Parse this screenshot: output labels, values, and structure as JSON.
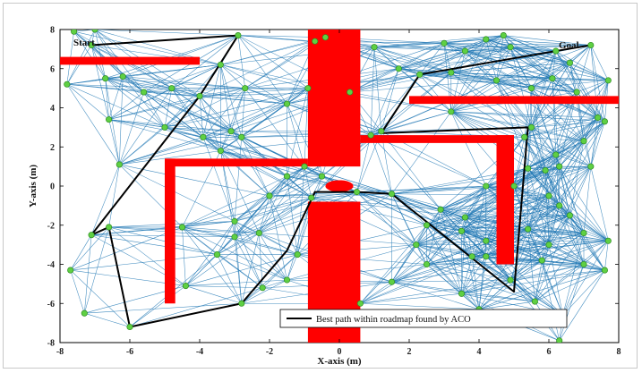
{
  "chart_data": {
    "type": "scatter",
    "title": "",
    "xlabel": "X-axis (m)",
    "ylabel": "Y-axis (m)",
    "xlim": [
      -8,
      8
    ],
    "ylim": [
      -8,
      8
    ],
    "xticks": [
      "-8",
      "-6",
      "-4",
      "-2",
      "0",
      "2",
      "4",
      "6",
      "8"
    ],
    "yticks": [
      "-8",
      "-6",
      "-4",
      "-2",
      "0",
      "2",
      "4",
      "6",
      "8"
    ],
    "annotations": [
      {
        "text": "Start",
        "x": -7.4,
        "y": 7.3
      },
      {
        "text": "Goal",
        "x": 6.4,
        "y": 7.05
      }
    ],
    "legend": {
      "position": "bottom-right",
      "entries": [
        "Best path within roadmap found by ACO"
      ]
    },
    "colors": {
      "edges": "#1f77b4",
      "nodes": "#5fd043",
      "node_stroke": "#2e8b22",
      "path": "#000000",
      "obstacles": "#ff0000"
    },
    "obstacles": [
      {
        "x0": -8,
        "x1": -4,
        "y0": 6.2,
        "y1": 6.6
      },
      {
        "x0": -0.9,
        "x1": 0.6,
        "y0": 1.0,
        "y1": 8.0
      },
      {
        "x0": -0.9,
        "x1": 0.6,
        "y0": -8.0,
        "y1": -0.8
      },
      {
        "x0": -5.0,
        "x1": -0.9,
        "y0": 1.0,
        "y1": 1.4
      },
      {
        "x0": -5.0,
        "x1": -4.7,
        "y0": -6.0,
        "y1": 1.4
      },
      {
        "x0": 0.6,
        "x1": 5.0,
        "y0": 2.2,
        "y1": 2.6
      },
      {
        "x0": 4.5,
        "x1": 5.0,
        "y0": -4.0,
        "y1": 2.6
      },
      {
        "x0": 2.0,
        "x1": 8.0,
        "y0": 4.2,
        "y1": 4.6
      }
    ],
    "central_obstacle": {
      "x": 0,
      "y": 0,
      "rx": 0.4,
      "ry": 0.3
    },
    "nodes": [
      [
        -7.6,
        7.9
      ],
      [
        -7.1,
        7.2
      ],
      [
        -7.0,
        8.0
      ],
      [
        -2.9,
        7.7
      ],
      [
        -0.7,
        7.4
      ],
      [
        -0.4,
        7.6
      ],
      [
        -7.8,
        5.2
      ],
      [
        -6.7,
        5.5
      ],
      [
        -6.2,
        5.6
      ],
      [
        -5.6,
        4.8
      ],
      [
        -4.8,
        5.0
      ],
      [
        -4.0,
        4.6
      ],
      [
        -3.4,
        6.2
      ],
      [
        -2.7,
        5.0
      ],
      [
        -1.5,
        4.2
      ],
      [
        -0.9,
        5.0
      ],
      [
        -6.6,
        3.4
      ],
      [
        -5.0,
        3.0
      ],
      [
        -3.9,
        2.5
      ],
      [
        -3.1,
        2.8
      ],
      [
        -2.8,
        2.5
      ],
      [
        -6.3,
        1.1
      ],
      [
        -3.4,
        1.8
      ],
      [
        1.0,
        7.1
      ],
      [
        1.7,
        6.0
      ],
      [
        3.0,
        7.3
      ],
      [
        3.6,
        6.9
      ],
      [
        4.2,
        7.5
      ],
      [
        4.7,
        7.7
      ],
      [
        4.9,
        7.1
      ],
      [
        6.2,
        6.9
      ],
      [
        6.6,
        6.3
      ],
      [
        7.2,
        7.2
      ],
      [
        2.3,
        5.7
      ],
      [
        3.2,
        5.8
      ],
      [
        4.5,
        5.4
      ],
      [
        5.5,
        5.0
      ],
      [
        6.1,
        5.5
      ],
      [
        6.8,
        4.8
      ],
      [
        7.7,
        5.4
      ],
      [
        0.3,
        4.8
      ],
      [
        0.9,
        2.6
      ],
      [
        1.2,
        2.8
      ],
      [
        3.2,
        3.8
      ],
      [
        5.5,
        3.0
      ],
      [
        5.3,
        2.5
      ],
      [
        6.2,
        1.6
      ],
      [
        7.0,
        2.3
      ],
      [
        7.4,
        3.5
      ],
      [
        7.6,
        3.3
      ],
      [
        6.3,
        1.0
      ],
      [
        7.2,
        1.0
      ],
      [
        5.9,
        0.8
      ],
      [
        6.0,
        -0.5
      ],
      [
        6.3,
        -1.0
      ],
      [
        6.6,
        -1.5
      ],
      [
        5.4,
        -2.2
      ],
      [
        7.0,
        -2.4
      ],
      [
        7.7,
        -2.8
      ],
      [
        6.0,
        -3.0
      ],
      [
        7.0,
        -4.0
      ],
      [
        7.6,
        -4.3
      ],
      [
        5.6,
        -5.9
      ],
      [
        6.4,
        -6.6
      ],
      [
        6.3,
        -7.9
      ],
      [
        5.8,
        -3.8
      ],
      [
        5.0,
        0.0
      ],
      [
        4.2,
        0.0
      ],
      [
        5.4,
        0.9
      ],
      [
        -7.7,
        -4.3
      ],
      [
        -7.3,
        -6.5
      ],
      [
        -7.1,
        -2.5
      ],
      [
        -6.6,
        -2.1
      ],
      [
        -6.0,
        -7.2
      ],
      [
        -4.5,
        -2.1
      ],
      [
        -3.5,
        -3.5
      ],
      [
        -3.0,
        -2.6
      ],
      [
        -2.3,
        -2.4
      ],
      [
        -4.4,
        -5.1
      ],
      [
        -2.8,
        -6.0
      ],
      [
        -2.2,
        -5.2
      ],
      [
        -1.5,
        -4.8
      ],
      [
        -1.2,
        -3.5
      ],
      [
        -2.0,
        -0.5
      ],
      [
        -1.5,
        0.5
      ],
      [
        -1.0,
        1.0
      ],
      [
        -0.5,
        0.5
      ],
      [
        -0.8,
        -0.6
      ],
      [
        -3.0,
        -1.8
      ],
      [
        0.5,
        -0.3
      ],
      [
        1.5,
        -0.4
      ],
      [
        2.5,
        -2.0
      ],
      [
        3.5,
        -2.3
      ],
      [
        4.2,
        -2.8
      ],
      [
        3.6,
        -1.6
      ],
      [
        2.5,
        -4.0
      ],
      [
        3.8,
        -3.6
      ],
      [
        4.2,
        -3.6
      ],
      [
        3.5,
        -5.5
      ],
      [
        4.0,
        -6.3
      ],
      [
        4.9,
        -4.8
      ],
      [
        1.5,
        -4.9
      ],
      [
        0.6,
        -6.0
      ],
      [
        2.2,
        -3.0
      ],
      [
        2.9,
        -1.2
      ]
    ],
    "best_path": [
      [
        -7.1,
        7.2
      ],
      [
        -2.9,
        7.7
      ],
      [
        -4.0,
        4.6
      ],
      [
        -7.1,
        -2.5
      ],
      [
        -6.6,
        -2.1
      ],
      [
        -6.0,
        -7.2
      ],
      [
        -2.8,
        -6.0
      ],
      [
        -1.5,
        -3.3
      ],
      [
        -0.7,
        -0.3
      ],
      [
        0.5,
        -0.3
      ],
      [
        1.5,
        -0.4
      ],
      [
        5.0,
        -5.4
      ],
      [
        5.4,
        3.0
      ],
      [
        1.2,
        2.7
      ],
      [
        2.3,
        5.7
      ],
      [
        6.2,
        6.9
      ],
      [
        7.2,
        7.2
      ]
    ]
  }
}
